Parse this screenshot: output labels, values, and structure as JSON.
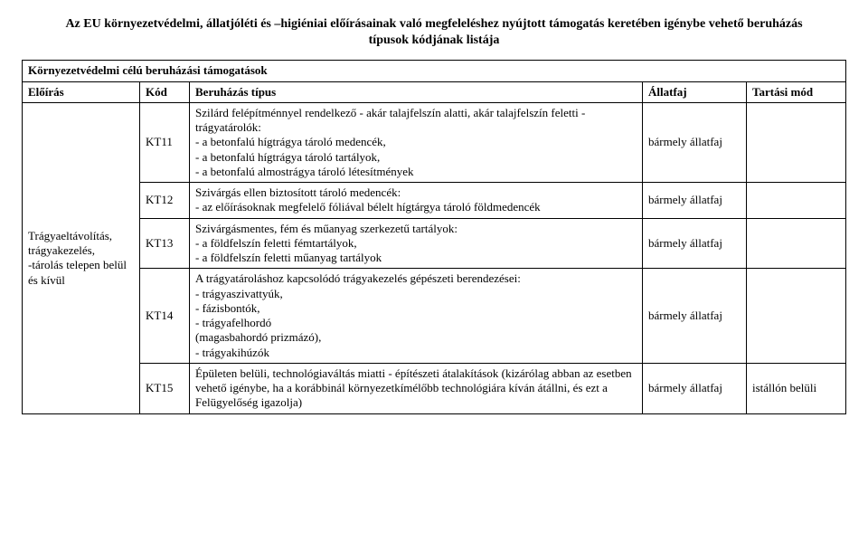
{
  "title_line1": "Az EU környezetvédelmi, állatjóléti és –higiéniai előírásainak való megfeleléshez nyújtott támogatás keretében igénybe vehető beruházás",
  "title_line2": "típusok kódjának listája",
  "section_header": "Környezetvédelmi célú beruházási támogatások",
  "headers": {
    "col1": "Előírás",
    "col2": "Kód",
    "col3": "Beruházás típus",
    "col4": "Állatfaj",
    "col5": "Tartási mód"
  },
  "rowgroup_label": "Trágyaeltávolítás, trágyakezelés,\n-tárolás telepen belül és kívül",
  "rows": [
    {
      "code": "KT11",
      "desc": "Szilárd felépítménnyel rendelkező - akár talajfelszín alatti, akár talajfelszín feletti - trágyatárolók:\n - a betonfalú hígtrágya tároló medencék,\n - a betonfalú hígtrágya tároló tartályok,\n - a betonfalú almostrágya tároló létesítmények",
      "species": " bármely állatfaj",
      "mode": ""
    },
    {
      "code": "KT12",
      "desc": "Szivárgás ellen biztosított tároló medencék:\n - az előírásoknak megfelelő fóliával bélelt hígtárgya tároló földmedencék",
      "species": " bármely állatfaj",
      "mode": ""
    },
    {
      "code": "KT13",
      "desc": "Szivárgásmentes, fém és műanyag szerkezetű tartályok:\n - a földfelszín feletti fémtartályok,\n - a földfelszín feletti műanyag tartályok",
      "species": " bármely állatfaj",
      "mode": ""
    },
    {
      "code": "KT14",
      "desc": "A trágyatároláshoz kapcsolódó trágyakezelés gépészeti berendezései:\n - trágyaszivattyúk,\n - fázisbontók,\n - trágyafelhordó\n(magasbahordó prizmázó),\n - trágyakihúzók",
      "species": "bármely állatfaj",
      "mode": ""
    },
    {
      "code": "KT15",
      "desc": "Épületen belüli, technológiaváltás miatti - építészeti átalakítások (kizárólag abban az esetben vehető igénybe, ha a korábbinál környezetkímélőbb technológiára kíván átállni, és ezt a Felügyelőség igazolja)",
      "species": " bármely állatfaj",
      "mode": "istállón belüli"
    }
  ]
}
